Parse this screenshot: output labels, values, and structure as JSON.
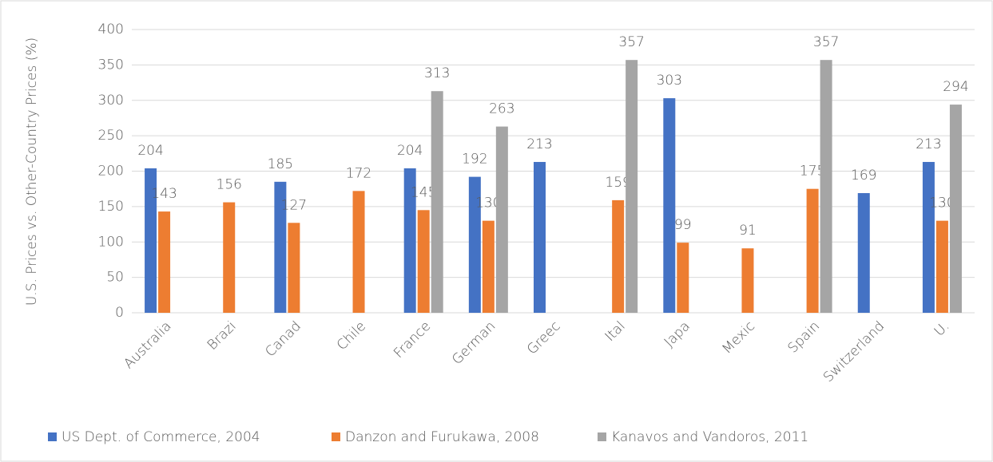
{
  "chart_data": {
    "type": "bar",
    "y_label": "U.S. Prices vs. Other-Country Prices (%)",
    "categories": [
      "Australia",
      "Brazi",
      "Canad",
      "Chile",
      "France",
      "German",
      "Greec",
      "Ital",
      "Japa",
      "Mexic",
      "Spain",
      "Switzerland",
      "U."
    ],
    "series": [
      {
        "name": "US Dept. of Commerce, 2004",
        "color": "#4472c4",
        "values": [
          204,
          null,
          185,
          null,
          204,
          192,
          213,
          null,
          303,
          null,
          null,
          169,
          213
        ]
      },
      {
        "name": "Danzon and Furukawa, 2008",
        "color": "#ed7d31",
        "values": [
          143,
          156,
          127,
          172,
          145,
          130,
          null,
          159,
          99,
          91,
          175,
          null,
          130
        ]
      },
      {
        "name": "Kanavos and Vandoros, 2011",
        "color": "#a5a5a5",
        "values": [
          null,
          null,
          null,
          null,
          313,
          263,
          null,
          357,
          null,
          null,
          357,
          null,
          294
        ]
      }
    ],
    "ylim": [
      0,
      400
    ],
    "yticks": [
      0,
      50,
      100,
      150,
      200,
      250,
      300,
      350,
      400
    ],
    "grid": true,
    "legend": "bottom"
  }
}
